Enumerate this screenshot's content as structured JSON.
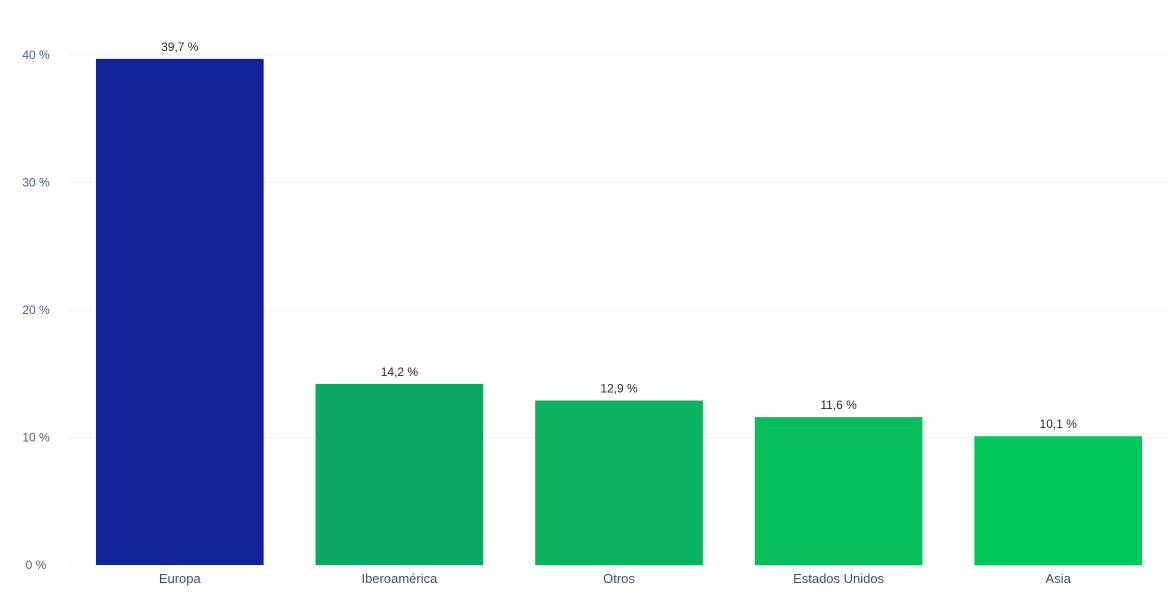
{
  "chart_data": {
    "type": "bar",
    "categories": [
      "Europa",
      "Iberoamérica",
      "Otros",
      "Estados Unidos",
      "Asia"
    ],
    "values": [
      39.7,
      14.2,
      12.9,
      11.6,
      10.1
    ],
    "value_labels": [
      "39,7 %",
      "14,2 %",
      "12,9 %",
      "11,6 %",
      "10,1 %"
    ],
    "title": "",
    "xlabel": "",
    "ylabel": "",
    "ylim": [
      0,
      40
    ],
    "yticks": [
      0,
      10,
      20,
      30,
      40
    ],
    "ytick_labels": [
      "0 %",
      "10 %",
      "20 %",
      "30 %",
      "40 %"
    ],
    "grid": true,
    "colors": [
      "#13249a",
      "#0aa663",
      "#0bb35f",
      "#08bf5d",
      "#00c95a"
    ]
  }
}
